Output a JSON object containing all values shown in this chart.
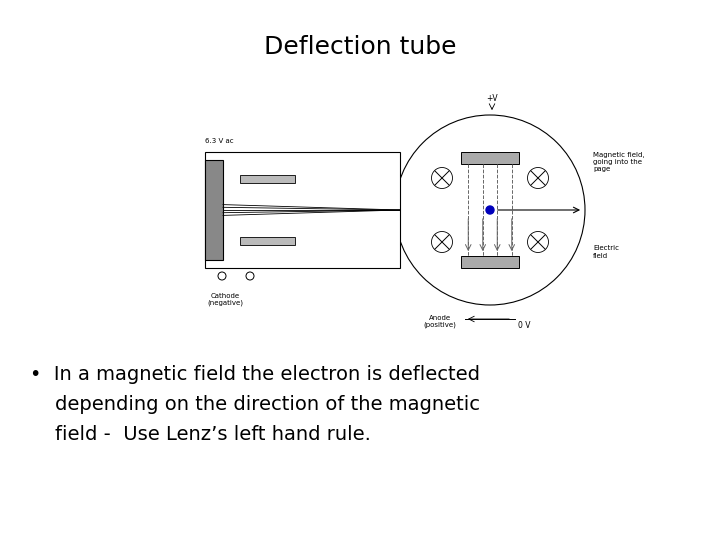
{
  "title": "Deflection tube",
  "title_fontsize": 18,
  "bullet_line1": "•  In a magnetic field the electron is deflected",
  "bullet_line2": "    depending on the direction of the magnetic",
  "bullet_line3": "    field -  Use Lenz’s left hand rule.",
  "bullet_fontsize": 14,
  "bg_color": "#ffffff",
  "text_color": "#000000",
  "diagram_color": "#333333",
  "plate_color": "#aaaaaa",
  "gun_color": "#cccccc",
  "electron_color": "#0000bb"
}
